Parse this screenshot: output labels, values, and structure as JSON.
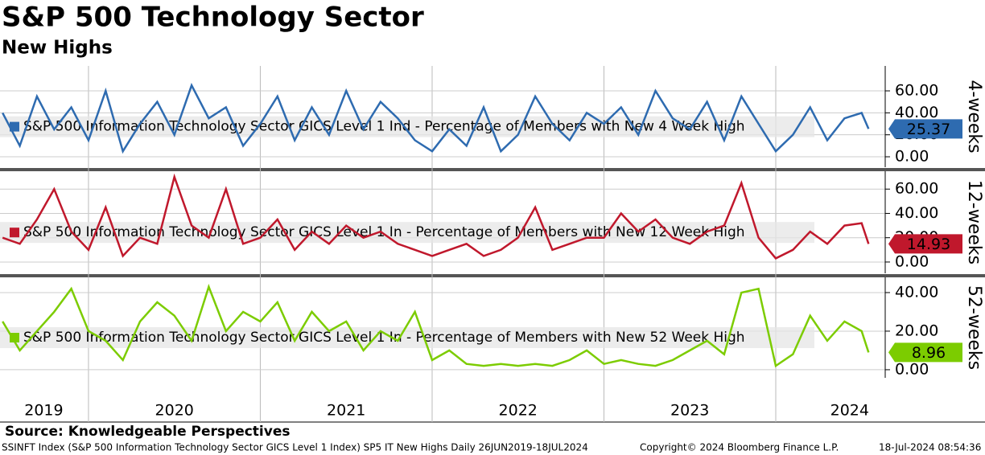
{
  "title": "S&P 500 Technology Sector",
  "subtitle": "New Highs",
  "source": "Source: Knowledgeable Perspectives",
  "footer": {
    "left": "SSINFT Index (S&P 500 Information Technology Sector GICS Level 1 Index) SP5 IT New Highs  Daily 26JUN2019-18JUL2024",
    "center": "Copyright© 2024 Bloomberg Finance L.P.",
    "right": "18-Jul-2024 08:54:36"
  },
  "x_axis": {
    "xlim": [
      2019.485,
      2024.637
    ],
    "xticks": [
      {
        "value": 2019.74,
        "label": "2019"
      },
      {
        "value": 2020.5,
        "label": "2020"
      },
      {
        "value": 2021.5,
        "label": "2021"
      },
      {
        "value": 2022.5,
        "label": "2022"
      },
      {
        "value": 2023.5,
        "label": "2023"
      },
      {
        "value": 2024.43,
        "label": "2024"
      }
    ],
    "year_lines": [
      2020,
      2021,
      2022,
      2023,
      2024
    ]
  },
  "chart_data": [
    {
      "type": "line",
      "label": "4-weeks",
      "grid": true,
      "x": [
        2019.5,
        2019.6,
        2019.7,
        2019.8,
        2019.9,
        2020.0,
        2020.1,
        2020.2,
        2020.3,
        2020.4,
        2020.5,
        2020.6,
        2020.7,
        2020.8,
        2020.9,
        2021.0,
        2021.1,
        2021.2,
        2021.3,
        2021.4,
        2021.5,
        2021.6,
        2021.7,
        2021.8,
        2021.9,
        2022.0,
        2022.1,
        2022.2,
        2022.3,
        2022.4,
        2022.5,
        2022.6,
        2022.7,
        2022.8,
        2022.9,
        2023.0,
        2023.1,
        2023.2,
        2023.3,
        2023.4,
        2023.5,
        2023.6,
        2023.7,
        2023.8,
        2023.9,
        2024.0,
        2024.1,
        2024.2,
        2024.3,
        2024.4,
        2024.5,
        2024.54
      ],
      "series": [
        {
          "name": "S&P 500 Information Technology Sector GICS Level 1 Ind - Percentage of Members with New 4 Week High",
          "color": "#2e6bb0",
          "values": [
            40,
            10,
            55,
            25,
            45,
            15,
            60,
            5,
            30,
            50,
            20,
            65,
            35,
            45,
            10,
            30,
            55,
            15,
            45,
            20,
            60,
            25,
            50,
            35,
            15,
            5,
            25,
            10,
            45,
            5,
            20,
            55,
            30,
            15,
            40,
            30,
            45,
            20,
            60,
            35,
            25,
            50,
            15,
            55,
            30,
            5,
            20,
            45,
            15,
            35,
            40,
            25.37
          ]
        }
      ],
      "ylim": [
        -9.5,
        82.7
      ],
      "yticks": [
        {
          "value": 0,
          "label": "0.00"
        },
        {
          "value": 20,
          "label": "20.00"
        },
        {
          "value": 40,
          "label": "40.00"
        },
        {
          "value": 60,
          "label": "60.00"
        }
      ]
    },
    {
      "type": "line",
      "label": "12-weeks",
      "grid": true,
      "x": [
        2019.5,
        2019.6,
        2019.7,
        2019.8,
        2019.9,
        2020.0,
        2020.1,
        2020.2,
        2020.3,
        2020.4,
        2020.5,
        2020.6,
        2020.7,
        2020.8,
        2020.9,
        2021.0,
        2021.1,
        2021.2,
        2021.3,
        2021.4,
        2021.5,
        2021.6,
        2021.7,
        2021.8,
        2021.9,
        2022.0,
        2022.1,
        2022.2,
        2022.3,
        2022.4,
        2022.5,
        2022.6,
        2022.7,
        2022.8,
        2022.9,
        2023.0,
        2023.1,
        2023.2,
        2023.3,
        2023.4,
        2023.5,
        2023.6,
        2023.7,
        2023.8,
        2023.9,
        2024.0,
        2024.1,
        2024.2,
        2024.3,
        2024.4,
        2024.5,
        2024.54
      ],
      "series": [
        {
          "name": "S&P 500 Information Technology Sector GICS Level 1 In - Percentage of Members with New 12 Week High",
          "color": "#c0182c",
          "values": [
            20,
            15,
            35,
            60,
            25,
            10,
            45,
            5,
            20,
            15,
            70,
            30,
            20,
            60,
            15,
            20,
            35,
            10,
            25,
            15,
            30,
            20,
            25,
            15,
            10,
            5,
            10,
            15,
            5,
            10,
            20,
            45,
            10,
            15,
            20,
            20,
            40,
            25,
            35,
            20,
            15,
            25,
            30,
            65,
            20,
            3,
            10,
            25,
            15,
            30,
            32,
            14.93
          ]
        }
      ],
      "ylim": [
        -9.3,
        74.7
      ],
      "yticks": [
        {
          "value": 0,
          "label": "0.00"
        },
        {
          "value": 20,
          "label": "20.00"
        },
        {
          "value": 40,
          "label": "40.00"
        },
        {
          "value": 60,
          "label": "60.00"
        }
      ]
    },
    {
      "type": "line",
      "label": "52-weeks",
      "grid": true,
      "x": [
        2019.5,
        2019.6,
        2019.7,
        2019.8,
        2019.9,
        2020.0,
        2020.1,
        2020.2,
        2020.3,
        2020.4,
        2020.5,
        2020.6,
        2020.7,
        2020.8,
        2020.9,
        2021.0,
        2021.1,
        2021.2,
        2021.3,
        2021.4,
        2021.5,
        2021.6,
        2021.7,
        2021.8,
        2021.9,
        2022.0,
        2022.1,
        2022.2,
        2022.3,
        2022.4,
        2022.5,
        2022.6,
        2022.7,
        2022.8,
        2022.9,
        2023.0,
        2023.1,
        2023.2,
        2023.3,
        2023.4,
        2023.5,
        2023.6,
        2023.7,
        2023.8,
        2023.9,
        2024.0,
        2024.1,
        2024.2,
        2024.3,
        2024.4,
        2024.5,
        2024.54
      ],
      "series": [
        {
          "name": "S&P 500 Information Technology Sector GICS Level 1 In - Percentage of Members with New 52 Week High",
          "color": "#7ccc00",
          "values": [
            25,
            10,
            20,
            30,
            42,
            20,
            15,
            5,
            25,
            35,
            28,
            15,
            43,
            20,
            30,
            25,
            35,
            15,
            30,
            20,
            25,
            10,
            20,
            15,
            30,
            5,
            10,
            3,
            2,
            3,
            2,
            3,
            2,
            5,
            10,
            3,
            5,
            3,
            2,
            5,
            10,
            15,
            8,
            40,
            42,
            2,
            8,
            28,
            15,
            25,
            20,
            8.96
          ]
        }
      ],
      "ylim": [
        -4.2,
        47.9
      ],
      "yticks": [
        {
          "value": 0,
          "label": "0.00"
        },
        {
          "value": 20,
          "label": "20.00"
        },
        {
          "value": 40,
          "label": "40.00"
        }
      ]
    }
  ]
}
